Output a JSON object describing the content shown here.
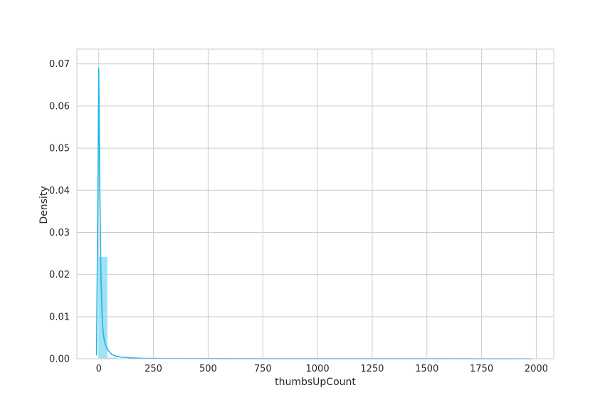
{
  "chart_data": {
    "type": "bar",
    "title": "",
    "xlabel": "thumbsUpCount",
    "ylabel": "Density",
    "xlim": [
      -100,
      2080
    ],
    "ylim": [
      0,
      0.07
    ],
    "x_ticks": [
      0,
      250,
      500,
      750,
      1000,
      1250,
      1500,
      1750,
      2000
    ],
    "y_ticks": [
      0.0,
      0.01,
      0.02,
      0.03,
      0.04,
      0.05,
      0.06,
      0.07
    ],
    "x_tick_labels": [
      "0",
      "250",
      "500",
      "750",
      "1000",
      "1250",
      "1500",
      "1750",
      "2000"
    ],
    "y_tick_labels": [
      "0.00",
      "0.01",
      "0.02",
      "0.03",
      "0.04",
      "0.05",
      "0.06",
      "0.07"
    ],
    "grid": true,
    "histogram": {
      "bin_edges": [
        0,
        39.6,
        79.2,
        118.8,
        158.4
      ],
      "densities": [
        0.0242,
        0.00025,
        0.0001,
        5e-05
      ],
      "color": "#8fdcf2"
    },
    "kde": {
      "color": "#1ab8e8",
      "x": [
        -10,
        -3,
        0,
        5,
        10,
        15,
        20,
        25,
        30,
        40,
        60,
        80,
        100,
        150,
        200,
        300,
        500,
        1000,
        1500,
        1980
      ],
      "y": [
        0.0008,
        0.045,
        0.069,
        0.04,
        0.02,
        0.0105,
        0.0065,
        0.0045,
        0.0035,
        0.0022,
        0.001,
        0.0006,
        0.0004,
        0.0002,
        0.0001,
        6e-05,
        3e-05,
        1e-05,
        5e-06,
        0.0
      ]
    }
  }
}
